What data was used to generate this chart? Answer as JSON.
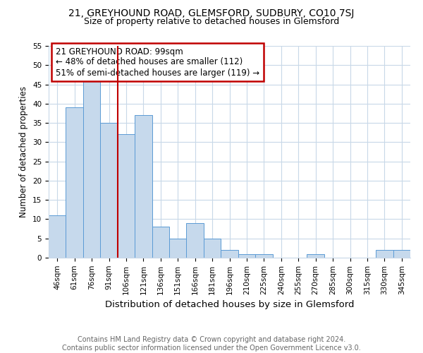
{
  "title1": "21, GREYHOUND ROAD, GLEMSFORD, SUDBURY, CO10 7SJ",
  "title2": "Size of property relative to detached houses in Glemsford",
  "xlabel": "Distribution of detached houses by size in Glemsford",
  "ylabel": "Number of detached properties",
  "footer1": "Contains HM Land Registry data © Crown copyright and database right 2024.",
  "footer2": "Contains public sector information licensed under the Open Government Licence v3.0.",
  "categories": [
    "46sqm",
    "61sqm",
    "76sqm",
    "91sqm",
    "106sqm",
    "121sqm",
    "136sqm",
    "151sqm",
    "166sqm",
    "181sqm",
    "196sqm",
    "210sqm",
    "225sqm",
    "240sqm",
    "255sqm",
    "270sqm",
    "285sqm",
    "300sqm",
    "315sqm",
    "330sqm",
    "345sqm"
  ],
  "values": [
    11,
    39,
    46,
    35,
    32,
    37,
    8,
    5,
    9,
    5,
    2,
    1,
    1,
    0,
    0,
    1,
    0,
    0,
    0,
    2,
    2
  ],
  "bar_color": "#c6d9ec",
  "bar_edge_color": "#5b9bd5",
  "vline_x": 3.5,
  "vline_color": "#c00000",
  "annotation_text": "21 GREYHOUND ROAD: 99sqm\n← 48% of detached houses are smaller (112)\n51% of semi-detached houses are larger (119) →",
  "annotation_box_color": "#ffffff",
  "annotation_box_edge": "#c00000",
  "ylim": [
    0,
    55
  ],
  "yticks": [
    0,
    5,
    10,
    15,
    20,
    25,
    30,
    35,
    40,
    45,
    50,
    55
  ],
  "bg_color": "#ffffff",
  "grid_color": "#c8d8e8",
  "title1_fontsize": 10,
  "title2_fontsize": 9,
  "xlabel_fontsize": 9.5,
  "ylabel_fontsize": 8.5,
  "tick_fontsize": 7.5,
  "annotation_fontsize": 8.5,
  "footer_fontsize": 7
}
